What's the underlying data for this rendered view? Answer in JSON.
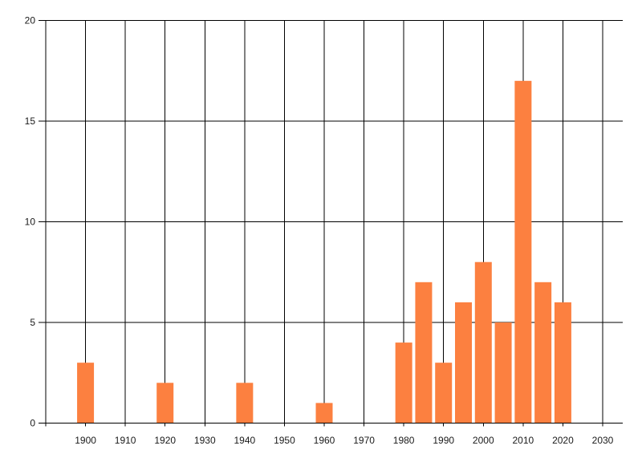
{
  "chart_data": {
    "type": "bar",
    "title": "",
    "xlabel": "",
    "ylabel": "",
    "x": [
      1900,
      1920,
      1940,
      1960,
      1980,
      1985,
      1990,
      1995,
      2000,
      2005,
      2010,
      2015,
      2020
    ],
    "values": [
      3,
      2,
      2,
      1,
      4,
      7,
      3,
      6,
      8,
      5,
      17,
      7,
      6
    ],
    "x_tick_labels": [
      "1900",
      "1910",
      "1920",
      "1930",
      "1940",
      "1950",
      "1960",
      "1970",
      "1980",
      "1990",
      "2000",
      "2010",
      "2020",
      "2030"
    ],
    "x_tick_years": [
      1900,
      1910,
      1920,
      1930,
      1940,
      1950,
      1960,
      1970,
      1980,
      1990,
      2000,
      2010,
      2020,
      2030
    ],
    "x_gridline_years": [
      1890,
      1900,
      1910,
      1920,
      1930,
      1940,
      1950,
      1960,
      1970,
      1980,
      1990,
      2000,
      2010,
      2020,
      2030
    ],
    "y_ticks": [
      0,
      5,
      10,
      15,
      20
    ],
    "y_tick_labels": [
      "0",
      "5",
      "10",
      "15",
      "20"
    ],
    "xlim": [
      1888,
      2035
    ],
    "ylim": [
      0,
      20
    ],
    "grid": true,
    "legend": "none",
    "colors": {
      "bar": "#FC8040",
      "grid": "#000000",
      "axis": "#000000",
      "text": "#1A1A1A",
      "background": "#FFFFFF"
    }
  }
}
